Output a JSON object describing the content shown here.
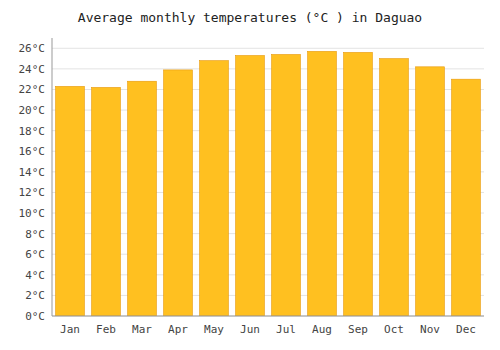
{
  "chart_data": {
    "type": "bar",
    "title": "Average monthly temperatures (°C ) in Daguao",
    "categories": [
      "Jan",
      "Feb",
      "Mar",
      "Apr",
      "May",
      "Jun",
      "Jul",
      "Aug",
      "Sep",
      "Oct",
      "Nov",
      "Dec"
    ],
    "values": [
      22.3,
      22.2,
      22.8,
      23.9,
      24.8,
      25.3,
      25.4,
      25.7,
      25.6,
      25.0,
      24.2,
      23.0
    ],
    "color": "#FFC020",
    "ylim": [
      0,
      27
    ],
    "yticks": [
      {
        "value": 0,
        "label": "0°C"
      },
      {
        "value": 2,
        "label": "2°C"
      },
      {
        "value": 4,
        "label": "4°C"
      },
      {
        "value": 6,
        "label": "6°C"
      },
      {
        "value": 8,
        "label": "8°C"
      },
      {
        "value": 10,
        "label": "10°C"
      },
      {
        "value": 12,
        "label": "12°C"
      },
      {
        "value": 14,
        "label": "14°C"
      },
      {
        "value": 16,
        "label": "16°C"
      },
      {
        "value": 18,
        "label": "18°C"
      },
      {
        "value": 20,
        "label": "20°C"
      },
      {
        "value": 22,
        "label": "22°C"
      },
      {
        "value": 24,
        "label": "24°C"
      },
      {
        "value": 26,
        "label": "26°C"
      }
    ],
    "grid": true
  }
}
